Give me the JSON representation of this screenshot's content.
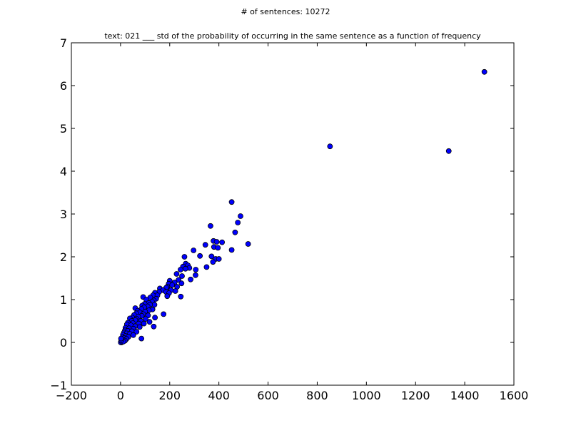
{
  "figure": {
    "suptitle": "# of sentences: 10272"
  },
  "chart_data": {
    "type": "scatter",
    "title": "text: 021 ___ std of the probability of occurring in the same sentence as a function of frequency",
    "xlabel": "",
    "ylabel": "",
    "xlim": [
      -200,
      1600
    ],
    "ylim": [
      -1,
      7
    ],
    "xticks": [
      -200,
      0,
      200,
      400,
      600,
      800,
      1000,
      1200,
      1400,
      1600
    ],
    "yticks": [
      -1,
      0,
      1,
      2,
      3,
      4,
      5,
      6,
      7
    ],
    "xtick_labels": [
      "−200",
      "0",
      "200",
      "400",
      "600",
      "800",
      "1000",
      "1200",
      "1400",
      "1600"
    ],
    "ytick_labels": [
      "−1",
      "0",
      "1",
      "2",
      "3",
      "4",
      "5",
      "6",
      "7"
    ],
    "grid": false,
    "marker_color": "#0000ff",
    "marker_edge_color": "#000000",
    "series": [
      {
        "points": [
          [
            1480,
            6.32
          ],
          [
            1335,
            4.47
          ],
          [
            852,
            4.58
          ],
          [
            452,
            3.28
          ],
          [
            488,
            2.95
          ],
          [
            366,
            2.72
          ],
          [
            477,
            2.8
          ],
          [
            466,
            2.57
          ],
          [
            378,
            2.37
          ],
          [
            391,
            2.35
          ],
          [
            413,
            2.34
          ],
          [
            519,
            2.3
          ],
          [
            345,
            2.28
          ],
          [
            380,
            2.23
          ],
          [
            396,
            2.21
          ],
          [
            452,
            2.16
          ],
          [
            297,
            2.15
          ],
          [
            260,
            2.0
          ],
          [
            323,
            2.02
          ],
          [
            370,
            2.01
          ],
          [
            387,
            1.95
          ],
          [
            400,
            1.95
          ],
          [
            376,
            1.88
          ],
          [
            265,
            1.84
          ],
          [
            274,
            1.8
          ],
          [
            254,
            1.77
          ],
          [
            350,
            1.76
          ],
          [
            280,
            1.74
          ],
          [
            306,
            1.7
          ],
          [
            244,
            1.7
          ],
          [
            264,
            1.72
          ],
          [
            228,
            1.6
          ],
          [
            250,
            1.55
          ],
          [
            305,
            1.57
          ],
          [
            236,
            1.46
          ],
          [
            285,
            1.47
          ],
          [
            200,
            1.44
          ],
          [
            248,
            1.38
          ],
          [
            196,
            1.37
          ],
          [
            220,
            1.4
          ],
          [
            210,
            1.34
          ],
          [
            190,
            1.3
          ],
          [
            230,
            1.3
          ],
          [
            186,
            1.28
          ],
          [
            160,
            1.26
          ],
          [
            205,
            1.22
          ],
          [
            173,
            1.22
          ],
          [
            185,
            1.18
          ],
          [
            223,
            1.2
          ],
          [
            157,
            1.18
          ],
          [
            140,
            1.16
          ],
          [
            197,
            1.15
          ],
          [
            132,
            1.1
          ],
          [
            150,
            1.1
          ],
          [
            190,
            1.08
          ],
          [
            245,
            1.07
          ],
          [
            92,
            1.06
          ],
          [
            121,
            1.05
          ],
          [
            145,
            1.02
          ],
          [
            105,
            1.0
          ],
          [
            135,
            0.98
          ],
          [
            128,
            0.95
          ],
          [
            115,
            0.92
          ],
          [
            98,
            0.9
          ],
          [
            138,
            0.88
          ],
          [
            120,
            0.88
          ],
          [
            88,
            0.86
          ],
          [
            110,
            0.84
          ],
          [
            96,
            0.82
          ],
          [
            60,
            0.8
          ],
          [
            85,
            0.78
          ],
          [
            130,
            0.77
          ],
          [
            115,
            0.75
          ],
          [
            70,
            0.74
          ],
          [
            100,
            0.72
          ],
          [
            78,
            0.7
          ],
          [
            64,
            0.68
          ],
          [
            92,
            0.66
          ],
          [
            175,
            0.66
          ],
          [
            55,
            0.64
          ],
          [
            112,
            0.63
          ],
          [
            86,
            0.62
          ],
          [
            72,
            0.6
          ],
          [
            48,
            0.58
          ],
          [
            140,
            0.58
          ],
          [
            38,
            0.56
          ],
          [
            65,
            0.55
          ],
          [
            102,
            0.55
          ],
          [
            60,
            0.52
          ],
          [
            45,
            0.5
          ],
          [
            82,
            0.5
          ],
          [
            118,
            0.48
          ],
          [
            30,
            0.46
          ],
          [
            50,
            0.45
          ],
          [
            74,
            0.44
          ],
          [
            95,
            0.44
          ],
          [
            26,
            0.42
          ],
          [
            42,
            0.4
          ],
          [
            60,
            0.38
          ],
          [
            78,
            0.36
          ],
          [
            135,
            0.37
          ],
          [
            20,
            0.34
          ],
          [
            35,
            0.33
          ],
          [
            52,
            0.32
          ],
          [
            18,
            0.28
          ],
          [
            30,
            0.27
          ],
          [
            46,
            0.26
          ],
          [
            65,
            0.25
          ],
          [
            14,
            0.23
          ],
          [
            24,
            0.21
          ],
          [
            38,
            0.2
          ],
          [
            52,
            0.17
          ],
          [
            10,
            0.18
          ],
          [
            20,
            0.15
          ],
          [
            32,
            0.13
          ],
          [
            8,
            0.12
          ],
          [
            15,
            0.1
          ],
          [
            85,
            0.09
          ],
          [
            24,
            0.08
          ],
          [
            5,
            0.07
          ],
          [
            10,
            0.05
          ],
          [
            18,
            0.04
          ],
          [
            3,
            0.03
          ],
          [
            7,
            0.02
          ],
          [
            2,
            0.01
          ],
          [
            4,
            0.0
          ],
          [
            1,
            0.0
          ],
          [
            6,
            0.01
          ],
          [
            12,
            0.02
          ],
          [
            3,
            0.05
          ],
          [
            2,
            0.09
          ]
        ]
      }
    ]
  }
}
